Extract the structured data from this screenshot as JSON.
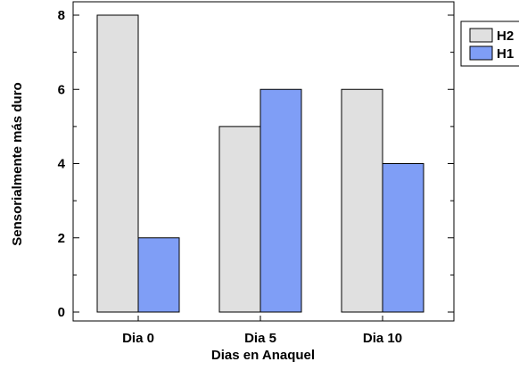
{
  "chart_data": {
    "type": "bar",
    "categories": [
      "Dia 0",
      "Dia 5",
      "Dia 10"
    ],
    "series": [
      {
        "name": "H2",
        "values": [
          8,
          5,
          6
        ],
        "color": "#e0e0e0"
      },
      {
        "name": "H1",
        "values": [
          2,
          6,
          4
        ],
        "color": "#7f9ef6"
      }
    ],
    "xlabel": "Dias en Anaquel",
    "ylabel": "Sensorialmente más duro",
    "ylim": [
      0,
      8
    ],
    "yticks": [
      "0",
      "2",
      "4",
      "6",
      "8"
    ],
    "grid": false,
    "legend": "top-right"
  }
}
